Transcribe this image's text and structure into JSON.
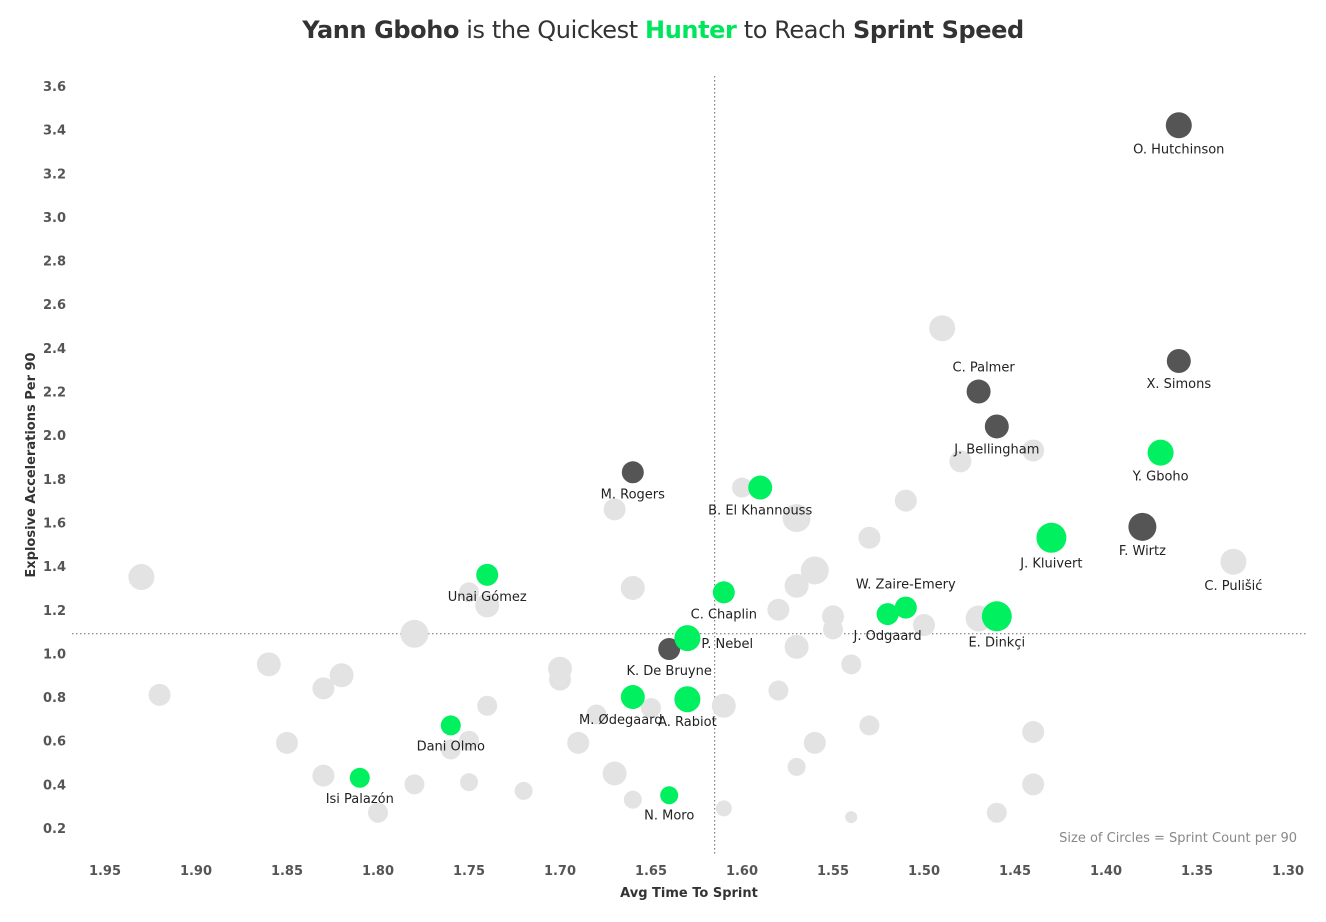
{
  "title": {
    "p1": "Yann Gboho",
    "p2": " is the Quickest ",
    "p3": "Hunter",
    "p4": " to Reach ",
    "p5": "Sprint Speed"
  },
  "chart_data": {
    "type": "scatter",
    "xlabel": "Avg Time To Sprint",
    "ylabel": "Explosive Accelerations Per 90",
    "size_note": "Size of Circles = Sprint Count per 90",
    "x_axis_reversed": true,
    "xlim": [
      1.3,
      1.95
    ],
    "ylim": [
      0.2,
      3.6
    ],
    "x_ticks": [
      "1.95",
      "1.90",
      "1.85",
      "1.80",
      "1.75",
      "1.70",
      "1.65",
      "1.60",
      "1.55",
      "1.50",
      "1.45",
      "1.40",
      "1.35",
      "1.30"
    ],
    "y_ticks": [
      "0.2",
      "0.4",
      "0.6",
      "0.8",
      "1.0",
      "1.2",
      "1.4",
      "1.6",
      "1.8",
      "2.0",
      "2.2",
      "2.4",
      "2.6",
      "2.8",
      "3.0",
      "3.2",
      "3.4",
      "3.6"
    ],
    "reference_lines": {
      "x": 1.615,
      "y": 1.09
    },
    "colors": {
      "hunter": "#00f060",
      "highlight": "#555555",
      "other": "#e3e3e3"
    },
    "highlighted": [
      {
        "name": "O. Hutchinson",
        "x": 1.36,
        "y": 3.42,
        "r": 13,
        "group": "highlight"
      },
      {
        "name": "X. Simons",
        "x": 1.36,
        "y": 2.34,
        "r": 12,
        "group": "highlight"
      },
      {
        "name": "C. Palmer",
        "x": 1.47,
        "y": 2.2,
        "r": 12,
        "group": "highlight"
      },
      {
        "name": "J. Bellingham",
        "x": 1.46,
        "y": 2.04,
        "r": 12,
        "group": "highlight"
      },
      {
        "name": "F. Wirtz",
        "x": 1.38,
        "y": 1.58,
        "r": 14,
        "group": "highlight"
      },
      {
        "name": "M. Rogers",
        "x": 1.66,
        "y": 1.83,
        "r": 11,
        "group": "highlight"
      },
      {
        "name": "K. De Bruyne",
        "x": 1.64,
        "y": 1.02,
        "r": 11,
        "group": "highlight"
      },
      {
        "name": "Y. Gboho",
        "x": 1.37,
        "y": 1.92,
        "r": 13,
        "group": "hunter"
      },
      {
        "name": "J. Kluivert",
        "x": 1.43,
        "y": 1.53,
        "r": 15,
        "group": "hunter"
      },
      {
        "name": "B. El Khannouss",
        "x": 1.59,
        "y": 1.76,
        "r": 12,
        "group": "hunter"
      },
      {
        "name": "W. Zaire-Emery",
        "x": 1.51,
        "y": 1.21,
        "r": 11,
        "group": "hunter"
      },
      {
        "name": "J. Odgaard",
        "x": 1.52,
        "y": 1.18,
        "r": 11,
        "group": "hunter"
      },
      {
        "name": "E. Dinkçi",
        "x": 1.46,
        "y": 1.17,
        "r": 15,
        "group": "hunter"
      },
      {
        "name": "C. Chaplin",
        "x": 1.61,
        "y": 1.28,
        "r": 11,
        "group": "hunter"
      },
      {
        "name": "P. Nebel",
        "x": 1.63,
        "y": 1.07,
        "r": 13,
        "group": "hunter"
      },
      {
        "name": "Unai Gómez",
        "x": 1.74,
        "y": 1.36,
        "r": 11,
        "group": "hunter"
      },
      {
        "name": "M. Ødegaard",
        "x": 1.66,
        "y": 0.8,
        "r": 12,
        "group": "hunter"
      },
      {
        "name": "A. Rabiot",
        "x": 1.63,
        "y": 0.79,
        "r": 13,
        "group": "hunter"
      },
      {
        "name": "Dani Olmo",
        "x": 1.76,
        "y": 0.67,
        "r": 10,
        "group": "hunter"
      },
      {
        "name": "Isi Palazón",
        "x": 1.81,
        "y": 0.43,
        "r": 10,
        "group": "hunter"
      },
      {
        "name": "N. Moro",
        "x": 1.64,
        "y": 0.35,
        "r": 9,
        "group": "hunter"
      },
      {
        "name": "C. Pulišić",
        "x": 1.33,
        "y": 1.42,
        "r": 13,
        "group": "other"
      }
    ],
    "others": [
      {
        "x": 1.93,
        "y": 1.35,
        "r": 13
      },
      {
        "x": 1.92,
        "y": 0.81,
        "r": 11
      },
      {
        "x": 1.86,
        "y": 0.95,
        "r": 12
      },
      {
        "x": 1.85,
        "y": 0.59,
        "r": 11
      },
      {
        "x": 1.83,
        "y": 0.84,
        "r": 11
      },
      {
        "x": 1.83,
        "y": 0.44,
        "r": 11
      },
      {
        "x": 1.82,
        "y": 0.9,
        "r": 12
      },
      {
        "x": 1.8,
        "y": 0.27,
        "r": 10
      },
      {
        "x": 1.78,
        "y": 1.09,
        "r": 14
      },
      {
        "x": 1.78,
        "y": 0.4,
        "r": 10
      },
      {
        "x": 1.75,
        "y": 0.41,
        "r": 9
      },
      {
        "x": 1.75,
        "y": 1.28,
        "r": 10
      },
      {
        "x": 1.74,
        "y": 1.22,
        "r": 12
      },
      {
        "x": 1.74,
        "y": 0.76,
        "r": 10
      },
      {
        "x": 1.75,
        "y": 0.6,
        "r": 10
      },
      {
        "x": 1.76,
        "y": 0.56,
        "r": 10
      },
      {
        "x": 1.72,
        "y": 0.37,
        "r": 9
      },
      {
        "x": 1.7,
        "y": 0.93,
        "r": 12
      },
      {
        "x": 1.7,
        "y": 0.88,
        "r": 11
      },
      {
        "x": 1.69,
        "y": 0.59,
        "r": 11
      },
      {
        "x": 1.68,
        "y": 0.72,
        "r": 10
      },
      {
        "x": 1.67,
        "y": 1.66,
        "r": 11
      },
      {
        "x": 1.67,
        "y": 0.45,
        "r": 12
      },
      {
        "x": 1.66,
        "y": 1.3,
        "r": 12
      },
      {
        "x": 1.66,
        "y": 0.33,
        "r": 9
      },
      {
        "x": 1.65,
        "y": 0.75,
        "r": 10
      },
      {
        "x": 1.61,
        "y": 0.76,
        "r": 12
      },
      {
        "x": 1.61,
        "y": 0.29,
        "r": 8
      },
      {
        "x": 1.6,
        "y": 1.76,
        "r": 10
      },
      {
        "x": 1.58,
        "y": 1.2,
        "r": 11
      },
      {
        "x": 1.58,
        "y": 0.83,
        "r": 10
      },
      {
        "x": 1.57,
        "y": 1.62,
        "r": 14
      },
      {
        "x": 1.57,
        "y": 1.31,
        "r": 12
      },
      {
        "x": 1.57,
        "y": 1.03,
        "r": 12
      },
      {
        "x": 1.57,
        "y": 0.48,
        "r": 9
      },
      {
        "x": 1.56,
        "y": 1.38,
        "r": 14
      },
      {
        "x": 1.56,
        "y": 0.59,
        "r": 11
      },
      {
        "x": 1.55,
        "y": 1.17,
        "r": 11
      },
      {
        "x": 1.55,
        "y": 1.11,
        "r": 10
      },
      {
        "x": 1.54,
        "y": 0.95,
        "r": 10
      },
      {
        "x": 1.54,
        "y": 0.25,
        "r": 6
      },
      {
        "x": 1.53,
        "y": 1.53,
        "r": 11
      },
      {
        "x": 1.53,
        "y": 0.67,
        "r": 10
      },
      {
        "x": 1.51,
        "y": 1.7,
        "r": 11
      },
      {
        "x": 1.5,
        "y": 1.13,
        "r": 11
      },
      {
        "x": 1.49,
        "y": 2.49,
        "r": 13
      },
      {
        "x": 1.48,
        "y": 1.88,
        "r": 11
      },
      {
        "x": 1.47,
        "y": 1.16,
        "r": 13
      },
      {
        "x": 1.46,
        "y": 0.27,
        "r": 10
      },
      {
        "x": 1.44,
        "y": 1.93,
        "r": 11
      },
      {
        "x": 1.44,
        "y": 0.64,
        "r": 11
      },
      {
        "x": 1.44,
        "y": 0.4,
        "r": 11
      }
    ]
  }
}
